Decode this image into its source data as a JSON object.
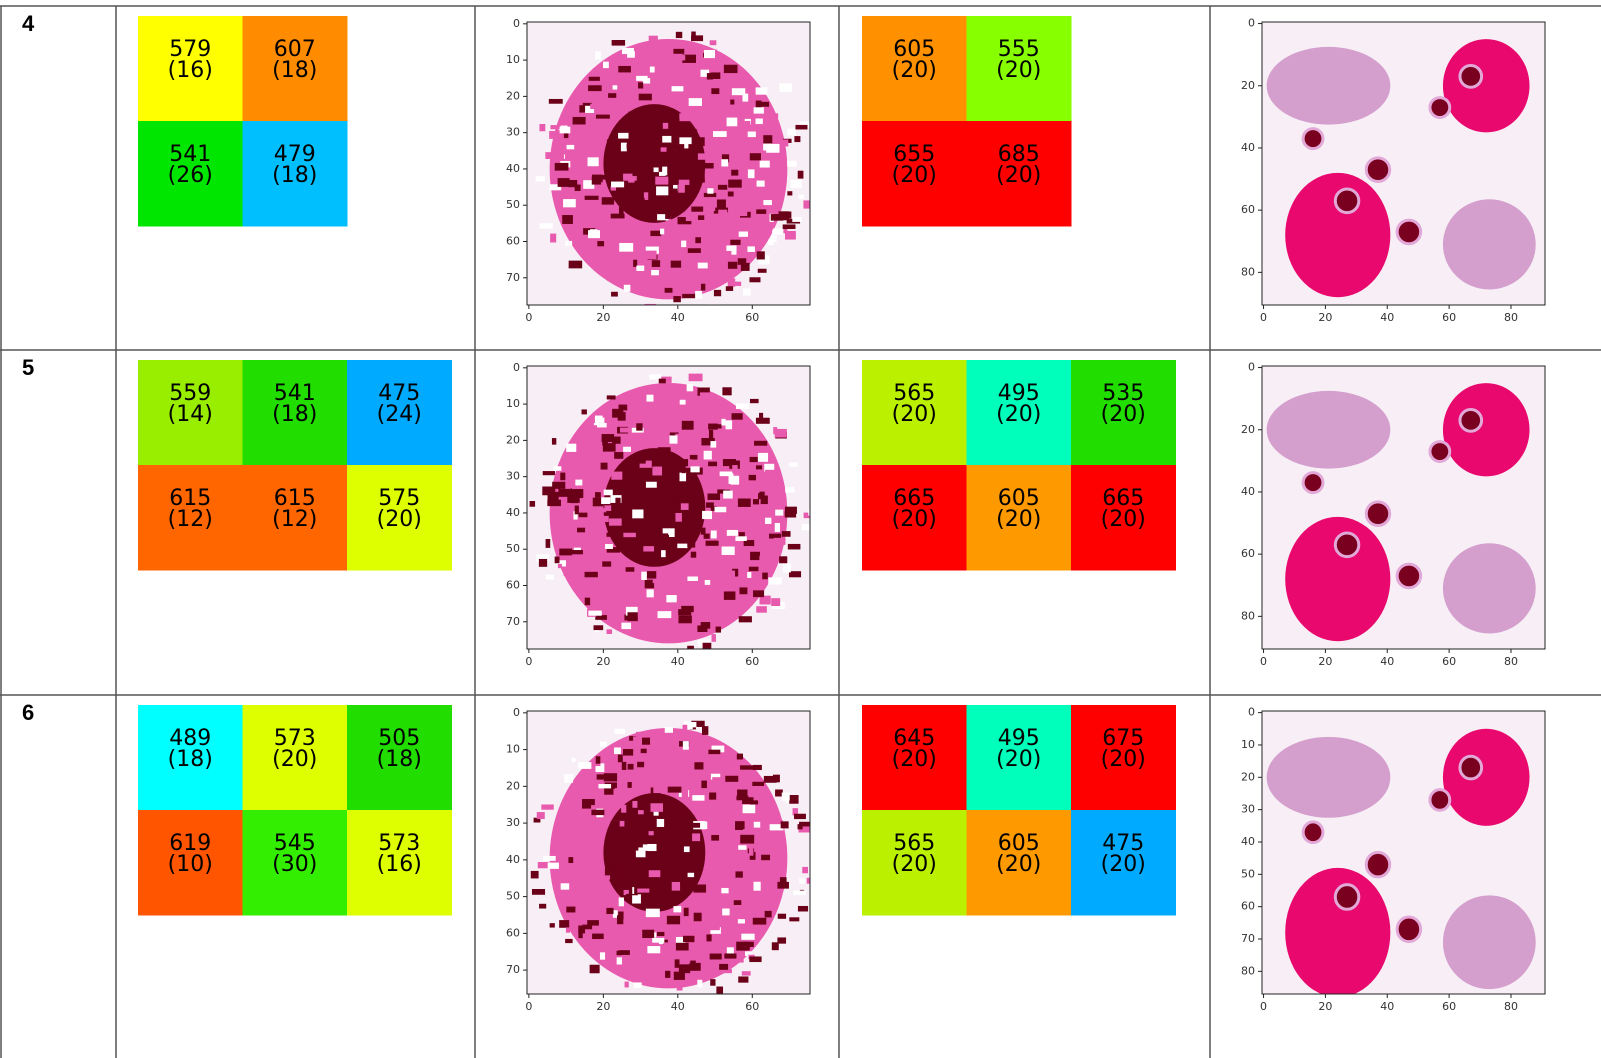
{
  "rows": [
    {
      "label": "4",
      "left_grid": {
        "columns": 2,
        "cells": [
          {
            "value": 579,
            "count": "(16)",
            "color": "#ffff00"
          },
          {
            "value": 607,
            "count": "(18)",
            "color": "#ff8c00"
          },
          {
            "value": 541,
            "count": "(26)",
            "color": "#00e600"
          },
          {
            "value": 479,
            "count": "(18)",
            "color": "#00bfff"
          }
        ]
      },
      "left_plot": {
        "xlim": [
          -0.5,
          75.5
        ],
        "ylim": [
          -0.5,
          77.5
        ],
        "xticks": [
          0,
          20,
          40,
          60
        ],
        "yticks": [
          0,
          10,
          20,
          30,
          40,
          50,
          60,
          70
        ]
      },
      "right_grid": {
        "columns": 2,
        "cells": [
          {
            "value": 605,
            "count": "(20)",
            "color": "#ff9000"
          },
          {
            "value": 555,
            "count": "(20)",
            "color": "#88ff00"
          },
          {
            "value": 655,
            "count": "(20)",
            "color": "#ff0000"
          },
          {
            "value": 685,
            "count": "(20)",
            "color": "#ff0000"
          }
        ]
      },
      "right_plot": {
        "xlim": [
          -0.5,
          91
        ],
        "ylim": [
          -0.5,
          90.5
        ],
        "xticks": [
          0,
          20,
          40,
          60,
          80
        ],
        "yticks": [
          0,
          20,
          40,
          60,
          80
        ]
      }
    },
    {
      "label": "5",
      "left_grid": {
        "columns": 3,
        "cells": [
          {
            "value": 559,
            "count": "(14)",
            "color": "#99ee00"
          },
          {
            "value": 541,
            "count": "(18)",
            "color": "#22dd00"
          },
          {
            "value": 475,
            "count": "(24)",
            "color": "#00aaff"
          },
          {
            "value": 615,
            "count": "(12)",
            "color": "#ff6600"
          },
          {
            "value": 615,
            "count": "(12)",
            "color": "#ff6600"
          },
          {
            "value": 575,
            "count": "(20)",
            "color": "#ddff00"
          }
        ]
      },
      "left_plot": {
        "xlim": [
          -0.5,
          75.5
        ],
        "ylim": [
          -0.5,
          77.5
        ],
        "xticks": [
          0,
          20,
          40,
          60
        ],
        "yticks": [
          0,
          10,
          20,
          30,
          40,
          50,
          60,
          70
        ]
      },
      "right_grid": {
        "columns": 3,
        "cells": [
          {
            "value": 565,
            "count": "(20)",
            "color": "#bbf000"
          },
          {
            "value": 495,
            "count": "(20)",
            "color": "#00ffbb"
          },
          {
            "value": 535,
            "count": "(20)",
            "color": "#22dd00"
          },
          {
            "value": 665,
            "count": "(20)",
            "color": "#ff0000"
          },
          {
            "value": 605,
            "count": "(20)",
            "color": "#ff9900"
          },
          {
            "value": 665,
            "count": "(20)",
            "color": "#ff0000"
          }
        ]
      },
      "right_plot": {
        "xlim": [
          -0.5,
          91
        ],
        "ylim": [
          -0.5,
          90.5
        ],
        "xticks": [
          0,
          20,
          40,
          60,
          80
        ],
        "yticks": [
          0,
          20,
          40,
          60,
          80
        ]
      }
    },
    {
      "label": "6",
      "left_grid": {
        "columns": 3,
        "cells": [
          {
            "value": 489,
            "count": "(18)",
            "color": "#00ffff"
          },
          {
            "value": 573,
            "count": "(20)",
            "color": "#ddff00"
          },
          {
            "value": 505,
            "count": "(18)",
            "color": "#22dd00"
          },
          {
            "value": 619,
            "count": "(10)",
            "color": "#ff5500"
          },
          {
            "value": 545,
            "count": "(30)",
            "color": "#33ee00"
          },
          {
            "value": 573,
            "count": "(16)",
            "color": "#ddff00"
          }
        ]
      },
      "left_plot": {
        "xlim": [
          -0.5,
          75.5
        ],
        "ylim": [
          -0.5,
          76.5
        ],
        "xticks": [
          0,
          20,
          40,
          60
        ],
        "yticks": [
          0,
          10,
          20,
          30,
          40,
          50,
          60,
          70
        ]
      },
      "right_grid": {
        "columns": 3,
        "cells": [
          {
            "value": 645,
            "count": "(20)",
            "color": "#ff0000"
          },
          {
            "value": 495,
            "count": "(20)",
            "color": "#00ffbb"
          },
          {
            "value": 675,
            "count": "(20)",
            "color": "#ff0000"
          },
          {
            "value": 565,
            "count": "(20)",
            "color": "#bbf000"
          },
          {
            "value": 605,
            "count": "(20)",
            "color": "#ff9900"
          },
          {
            "value": 475,
            "count": "(20)",
            "color": "#00aaff"
          }
        ]
      },
      "right_plot": {
        "xlim": [
          -0.5,
          91
        ],
        "ylim": [
          -0.5,
          87
        ],
        "xticks": [
          0,
          20,
          40,
          60,
          80
        ],
        "yticks": [
          0,
          10,
          20,
          30,
          40,
          50,
          60,
          70,
          80
        ]
      }
    }
  ]
}
